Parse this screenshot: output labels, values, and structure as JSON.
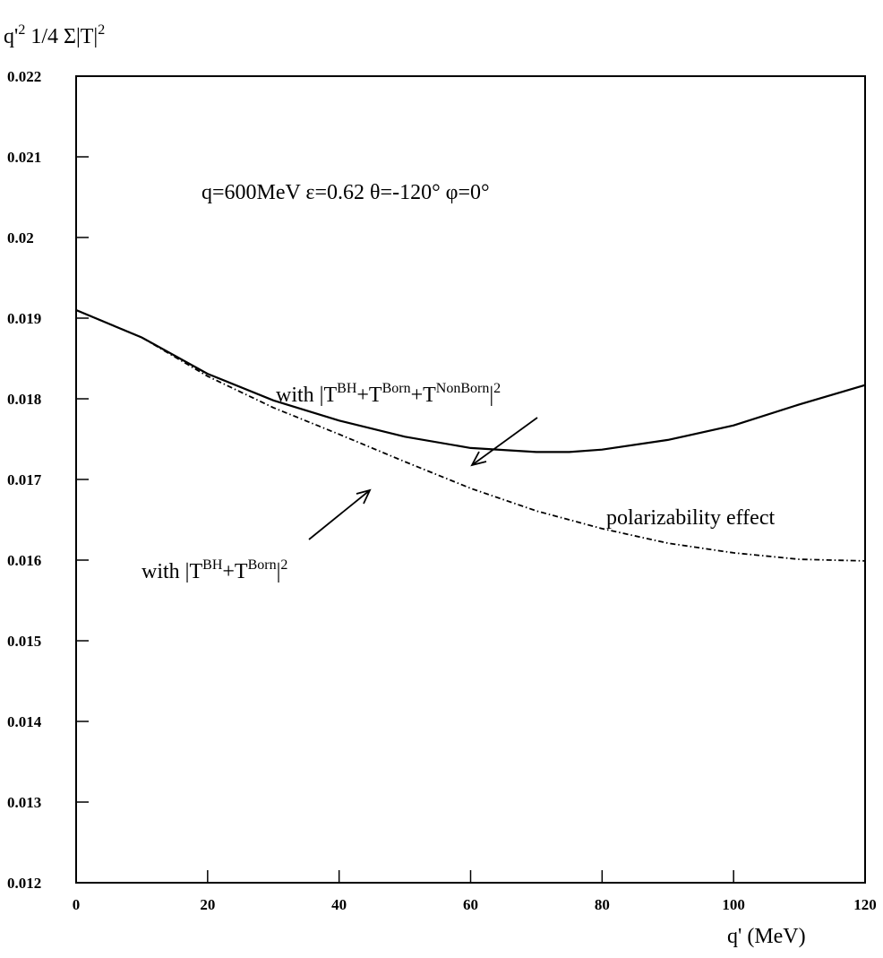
{
  "chart_data": {
    "type": "line",
    "y_label_parts": [
      "q'",
      "2",
      " 1/4 Σ|T|",
      "2"
    ],
    "x_label": "q' (MeV)",
    "annotation": "q=600MeV ε=0.62 θ=-120° φ=0°",
    "effect_label": "polarizability effect",
    "x": [
      0,
      10,
      20,
      30,
      40,
      50,
      60,
      70,
      75,
      80,
      90,
      100,
      110,
      120
    ],
    "series": [
      {
        "name_parts": [
          "with |T",
          "BH",
          "+T",
          "Born",
          "+T",
          "NonBorn",
          "|",
          "2"
        ],
        "color": "#000000",
        "style": "solid",
        "values": [
          0.0191,
          0.01876,
          0.01831,
          0.01798,
          0.01773,
          0.01753,
          0.01739,
          0.01734,
          0.01734,
          0.01737,
          0.01749,
          0.01767,
          0.01793,
          0.01817
        ]
      },
      {
        "name_parts": [
          "with |T",
          "BH",
          "+T",
          "Born",
          "|",
          "2"
        ],
        "color": "#000000",
        "style": "dashdot",
        "values": [
          0.0191,
          0.01876,
          0.01828,
          0.01789,
          0.01756,
          0.01722,
          0.01689,
          0.01661,
          0.0165,
          0.01639,
          0.01621,
          0.01609,
          0.01601,
          0.01599
        ]
      }
    ],
    "xlim": [
      0,
      120
    ],
    "ylim": [
      0.012,
      0.022
    ],
    "xticks": [
      0,
      20,
      40,
      60,
      80,
      100,
      120
    ],
    "yticks": [
      0.012,
      0.013,
      0.014,
      0.015,
      0.016,
      0.017,
      0.018,
      0.019,
      0.02,
      0.021,
      0.022
    ]
  }
}
